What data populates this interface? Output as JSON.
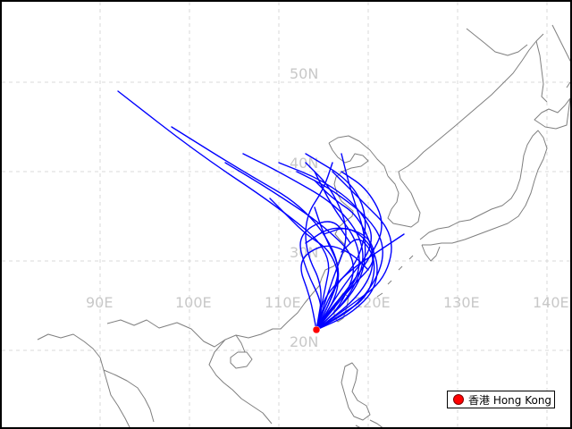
{
  "map": {
    "grid": {
      "longitudes": [
        {
          "value": 90,
          "label": "90E"
        },
        {
          "value": 100,
          "label": "100E"
        },
        {
          "value": 110,
          "label": "110E"
        },
        {
          "value": 120,
          "label": "120E"
        },
        {
          "value": 130,
          "label": "130E"
        },
        {
          "value": 140,
          "label": "140E"
        }
      ],
      "latitudes": [
        {
          "value": 20,
          "label": "20N"
        },
        {
          "value": 30,
          "label": "30N"
        },
        {
          "value": 40,
          "label": "40N"
        },
        {
          "value": 50,
          "label": "50N"
        }
      ],
      "line_color": "#d9d9d9",
      "label_color": "#c8c8c8"
    },
    "coastline_color": "#7f7f7f",
    "track_color": "#0000ff",
    "origin": {
      "name": "Hong Kong",
      "lon": 114.2,
      "lat": 22.3,
      "color": "#ff0000"
    },
    "tracks": [
      [
        [
          114.2,
          22.3
        ],
        [
          116,
          26
        ],
        [
          117,
          30
        ],
        [
          113,
          36
        ],
        [
          106,
          40
        ],
        [
          98,
          45
        ]
      ],
      [
        [
          114.2,
          22.3
        ],
        [
          115,
          26
        ],
        [
          116,
          31
        ],
        [
          110,
          36
        ],
        [
          101,
          42
        ],
        [
          92,
          49
        ]
      ],
      [
        [
          114.2,
          22.3
        ],
        [
          117,
          25
        ],
        [
          119,
          30
        ],
        [
          115,
          34
        ],
        [
          109,
          38
        ],
        [
          104,
          41
        ]
      ],
      [
        [
          114.2,
          22.3
        ],
        [
          118,
          26
        ],
        [
          120,
          31
        ],
        [
          117,
          36
        ],
        [
          110,
          40
        ],
        [
          106,
          42
        ]
      ],
      [
        [
          114.2,
          22.3
        ],
        [
          119,
          25
        ],
        [
          122,
          30
        ],
        [
          121,
          34
        ],
        [
          116,
          38
        ],
        [
          112,
          40
        ]
      ],
      [
        [
          114.2,
          22.3
        ],
        [
          117,
          27
        ],
        [
          121,
          32
        ],
        [
          119,
          36
        ],
        [
          115,
          39
        ],
        [
          110,
          41
        ]
      ],
      [
        [
          114.2,
          22.3
        ],
        [
          118,
          25
        ],
        [
          122,
          28
        ],
        [
          123,
          33
        ],
        [
          119,
          37
        ],
        [
          116,
          40
        ]
      ],
      [
        [
          114.2,
          22.3
        ],
        [
          116,
          28
        ],
        [
          118,
          33
        ],
        [
          116,
          38
        ],
        [
          113,
          41
        ]
      ],
      [
        [
          114.2,
          22.3
        ],
        [
          115,
          27
        ],
        [
          113,
          31
        ],
        [
          113,
          35
        ],
        [
          115,
          38
        ],
        [
          116,
          41
        ]
      ],
      [
        [
          114.2,
          22.3
        ],
        [
          117,
          26
        ],
        [
          120,
          30
        ],
        [
          122,
          34
        ],
        [
          120,
          38
        ],
        [
          117,
          40
        ]
      ],
      [
        [
          114.2,
          22.3
        ],
        [
          118,
          24
        ],
        [
          121,
          27
        ],
        [
          121,
          31
        ],
        [
          118,
          34
        ],
        [
          115,
          33
        ]
      ],
      [
        [
          114.2,
          22.3
        ],
        [
          115,
          25
        ],
        [
          113,
          29
        ],
        [
          112,
          33
        ],
        [
          116,
          35
        ],
        [
          118,
          32
        ]
      ],
      [
        [
          114.2,
          22.3
        ],
        [
          119,
          26
        ],
        [
          121,
          30
        ],
        [
          119,
          35
        ],
        [
          116,
          37
        ],
        [
          114,
          39
        ]
      ],
      [
        [
          114.2,
          22.3
        ],
        [
          116,
          27
        ],
        [
          119,
          30
        ],
        [
          120,
          35
        ],
        [
          118,
          39
        ],
        [
          113,
          42
        ]
      ],
      [
        [
          114.2,
          22.3
        ],
        [
          117,
          27
        ],
        [
          116,
          31
        ],
        [
          113,
          33
        ],
        [
          111,
          35
        ],
        [
          109,
          37
        ]
      ],
      [
        [
          114.2,
          22.3
        ],
        [
          118,
          27
        ],
        [
          121,
          30
        ],
        [
          120,
          33
        ],
        [
          116,
          34
        ],
        [
          113,
          32
        ]
      ],
      [
        [
          114.2,
          22.3
        ],
        [
          113.5,
          26
        ],
        [
          112,
          30
        ],
        [
          115,
          32
        ],
        [
          118,
          31
        ],
        [
          120,
          29
        ]
      ],
      [
        [
          114.2,
          22.3
        ],
        [
          115,
          26
        ],
        [
          118,
          29
        ],
        [
          121,
          31
        ],
        [
          124,
          33
        ]
      ],
      [
        [
          114.2,
          22.3
        ],
        [
          116,
          25
        ],
        [
          119,
          28
        ],
        [
          119,
          32
        ],
        [
          116,
          36
        ],
        [
          114,
          40
        ]
      ],
      [
        [
          114.2,
          22.3
        ],
        [
          117,
          24
        ],
        [
          120,
          26
        ],
        [
          121,
          30
        ],
        [
          119,
          33
        ],
        [
          117,
          31
        ]
      ],
      [
        [
          114.2,
          22.3
        ],
        [
          119,
          27
        ],
        [
          120,
          32
        ],
        [
          118,
          38
        ],
        [
          117,
          42
        ]
      ],
      [
        [
          114.2,
          22.3
        ],
        [
          116,
          26
        ],
        [
          117,
          29
        ],
        [
          115,
          33
        ],
        [
          114,
          36
        ]
      ]
    ],
    "legend": {
      "label": "香港 Hong Kong",
      "marker_color": "#ff0000"
    }
  }
}
